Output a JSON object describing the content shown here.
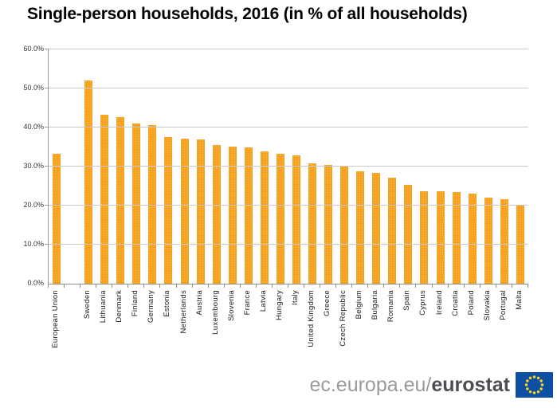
{
  "title": "Single-person households, 2016 (in % of all households)",
  "chart_data": {
    "type": "bar",
    "title": "Single-person households, 2016 (in % of all households)",
    "categories": [
      "European Union",
      "Sweden",
      "Lithuania",
      "Denmark",
      "Finland",
      "Germany",
      "Estonia",
      "Netherlands",
      "Austria",
      "Luxembourg",
      "Slovenia",
      "France",
      "Latvia",
      "Hungary",
      "Italy",
      "United Kingdom",
      "Greece",
      "Czech Republic",
      "Belgium",
      "Bulgaria",
      "Romania",
      "Spain",
      "Cyprus",
      "Ireland",
      "Croatia",
      "Poland",
      "Slovakia",
      "Portugal",
      "Malta"
    ],
    "values": [
      33.3,
      52.0,
      43.3,
      42.7,
      41.1,
      40.6,
      37.6,
      37.2,
      37.0,
      35.5,
      35.1,
      34.8,
      33.8,
      33.3,
      32.9,
      30.9,
      30.5,
      30.3,
      28.7,
      28.3,
      27.1,
      25.4,
      23.7,
      23.6,
      23.5,
      23.0,
      22.1,
      21.6,
      20.0
    ],
    "xlabel": "",
    "ylabel": "",
    "ylim": [
      0,
      60
    ],
    "ytick_labels_top_to_bottom": [
      "60.0%",
      "50.0%",
      "40.0%",
      "30.0%",
      "20.0%",
      "10.0%",
      "0.0%"
    ],
    "grid": true,
    "legend": "none",
    "spacer_after_index": 0,
    "bar_color": "#f6a21f",
    "gridline_color": "#c9c9c9"
  },
  "footer": {
    "url_prefix": "ec.europa.eu/",
    "brand": "eurostat",
    "flag_icon": "eu-flag",
    "flag_blue": "#0b4ea2",
    "flag_star_color": "#ffd617"
  }
}
